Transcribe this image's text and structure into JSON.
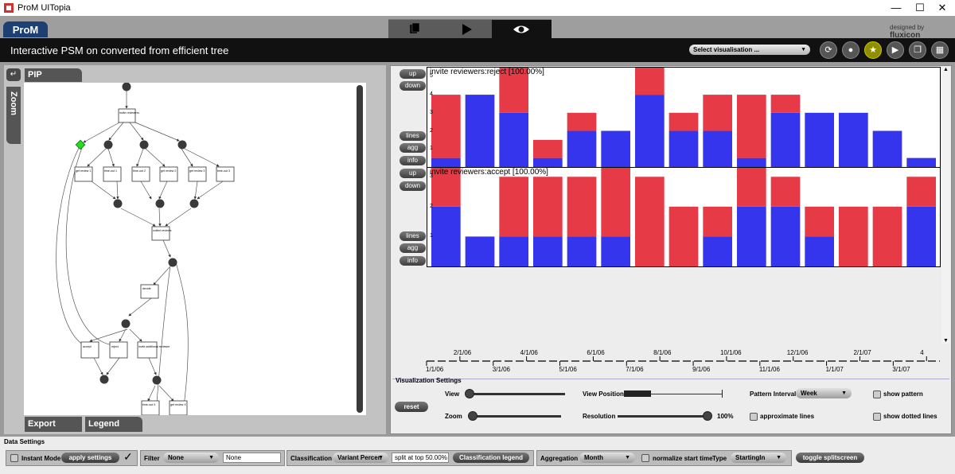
{
  "window": {
    "title": "ProM UITopia",
    "min_glyph": "—",
    "max_glyph": "☐",
    "close_glyph": "✕"
  },
  "header": {
    "logo": "ProM",
    "designed_by": "designed by",
    "brand": "fluxicon"
  },
  "view": {
    "title": "Interactive PSM on converted from efficient tree",
    "select_placeholder": "Select visualisation ..."
  },
  "left": {
    "pip_tab": "PIP",
    "zoom_tab": "Zoom",
    "export_tab": "Export",
    "legend_tab": "Legend",
    "nodes": {
      "invite": "invite reviewers",
      "get1": "get review 1",
      "time1": "time-out 1",
      "time2": "time-out 2",
      "get2": "get review 2",
      "get3": "get review 3",
      "time3": "time-out 3",
      "collect": "collect reviews",
      "decide": "decide",
      "accept": "accept",
      "reject": "reject",
      "invite_add": "invite additional reviewer",
      "time4": "time-out X",
      "getx": "get review X"
    }
  },
  "side_buttons": {
    "up": "up",
    "down": "down",
    "lines": "lines",
    "agg": "agg",
    "info": "info"
  },
  "chart_data": [
    {
      "type": "bar",
      "title": "invite reviewers:reject [100.00%]",
      "y_ticks": [
        "5",
        "4",
        "3",
        "2",
        "1"
      ],
      "ylim": [
        0,
        5.5
      ],
      "series": [
        {
          "name": "blue",
          "color": "#3535ee",
          "values": [
            0.5,
            4,
            3,
            0.5,
            2,
            2,
            4,
            2,
            2,
            0.5,
            3,
            3,
            3,
            2,
            0.5
          ]
        },
        {
          "name": "red",
          "color": "#e63a46",
          "values": [
            3.5,
            0,
            3,
            1,
            1,
            0,
            3,
            1,
            2,
            3.5,
            1,
            0,
            0,
            0,
            0
          ]
        }
      ]
    },
    {
      "type": "bar",
      "title": "invite reviewers:accept [100.00%]",
      "y_ticks": [
        "3",
        "2",
        "1"
      ],
      "ylim": [
        0,
        3.3
      ],
      "series": [
        {
          "name": "blue",
          "color": "#3535ee",
          "values": [
            2,
            1,
            1,
            1,
            1,
            1,
            0,
            0,
            1,
            2,
            2,
            1,
            0,
            0,
            2
          ]
        },
        {
          "name": "red",
          "color": "#e63a46",
          "values": [
            1.5,
            0,
            2,
            2,
            2,
            2.5,
            3,
            2,
            1,
            1.5,
            1,
            1,
            2,
            2,
            1
          ]
        }
      ]
    }
  ],
  "time_axis": {
    "upper_labels": [
      "2/1/06",
      "4/1/06",
      "6/1/06",
      "8/1/06",
      "10/1/06",
      "12/1/06",
      "2/1/07",
      "4"
    ],
    "lower_labels": [
      "1/1/06",
      "3/1/06",
      "5/1/06",
      "7/1/06",
      "9/1/06",
      "11/1/06",
      "1/1/07",
      "3/1/07"
    ]
  },
  "vis_settings": {
    "heading": "Visualization Settings",
    "view_label": "View",
    "view_position_label": "View Position",
    "zoom_label": "Zoom",
    "resolution_label": "Resolution",
    "resolution_value": "100%",
    "reset": "reset",
    "pattern_interval_label": "Pattern Interval",
    "pattern_interval_value": "Week",
    "approximate_lines": "approximate lines",
    "show_pattern": "show pattern",
    "show_dotted_lines": "show dotted lines"
  },
  "data_settings": {
    "heading": "Data Settings",
    "instant_mode": "Instant Mode",
    "apply_settings": "apply settings",
    "filter_label": "Filter",
    "filter_value": "None",
    "filter_text": "None",
    "classification_label": "Classification",
    "classification_value": "Variant Percen",
    "split_text": "split at top 50.00%",
    "classification_legend": "Classification legend",
    "aggregation_label": "Aggregation",
    "aggregation_value": "Month",
    "normalize_label": "normalize start time",
    "type_label": "Type",
    "type_value": "StartingIn",
    "toggle_split": "toggle splitscreen"
  }
}
